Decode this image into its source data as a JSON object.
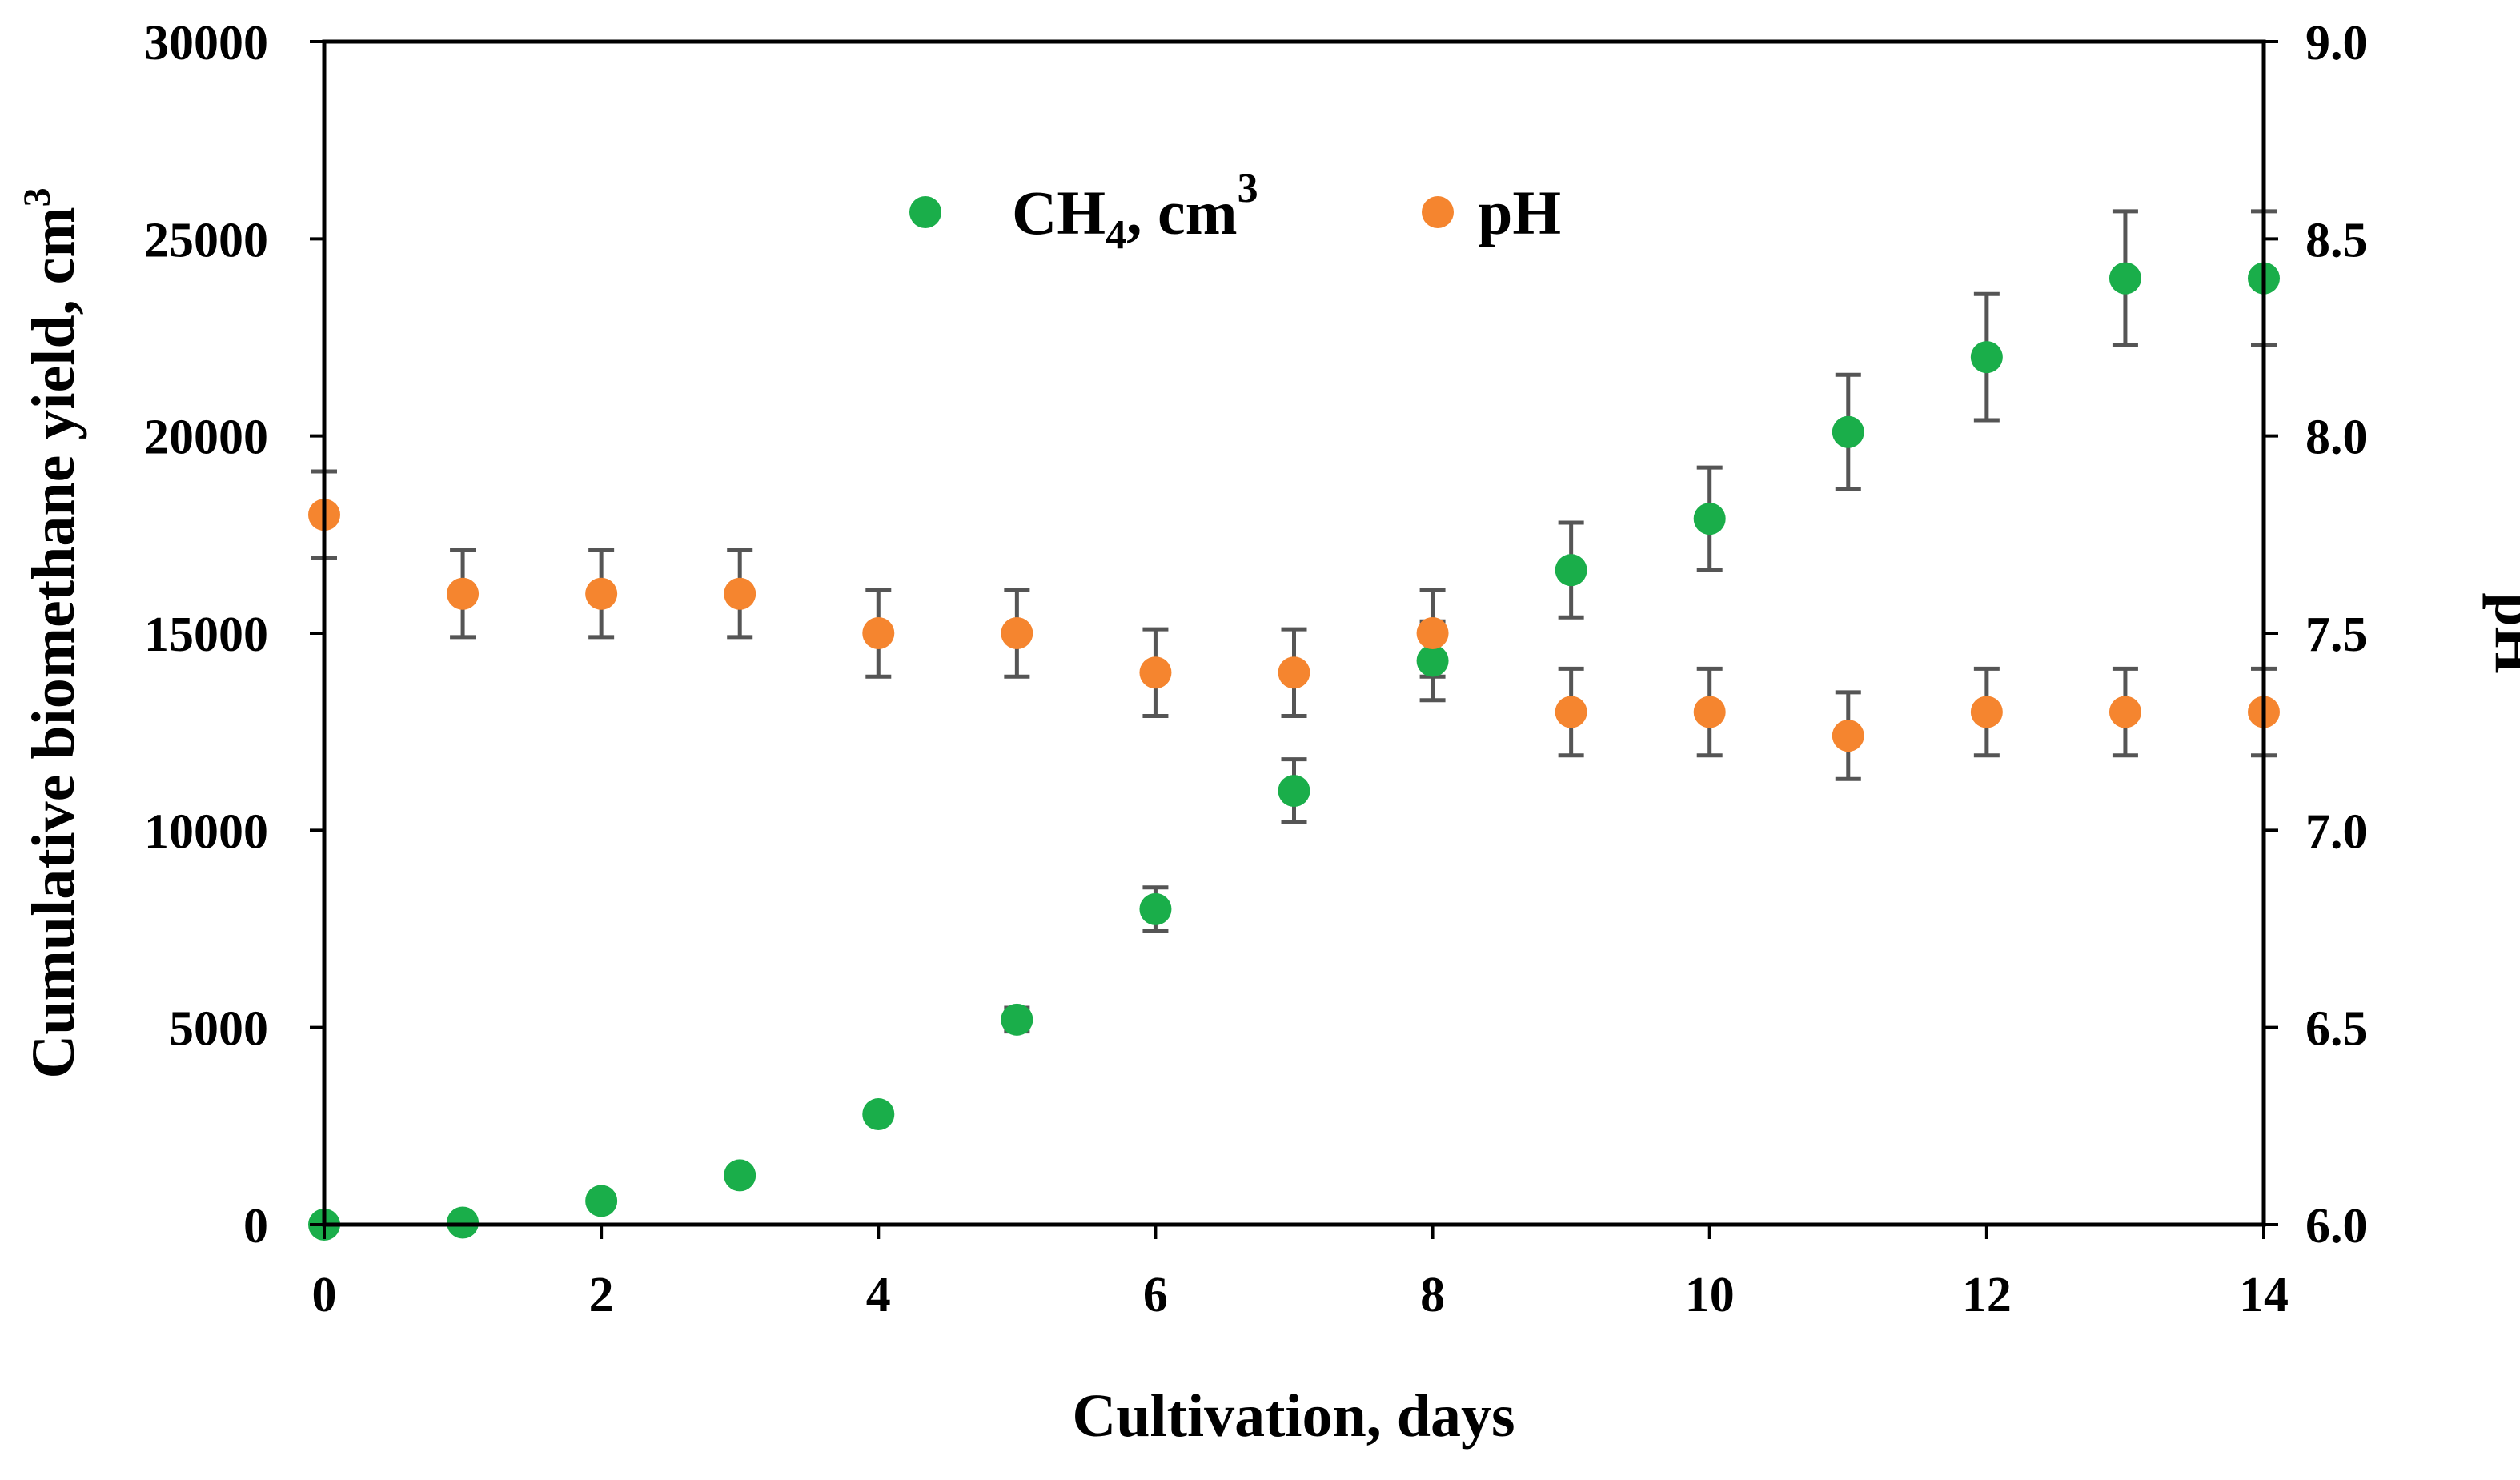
{
  "chart_data": {
    "type": "scatter",
    "title": "",
    "xlabel": "Cultivation, days",
    "ylabel": "Cumulative biomethane yield, cm",
    "ylabel_superscript": "3",
    "y2label": "pH",
    "xlim": [
      0,
      14
    ],
    "ylim": [
      0,
      30000
    ],
    "y2lim": [
      6.0,
      9.0
    ],
    "x_ticks": [
      "0",
      "2",
      "4",
      "6",
      "8",
      "10",
      "12",
      "14"
    ],
    "y_ticks": [
      "0",
      "5000",
      "10000",
      "15000",
      "20000",
      "25000",
      "30000"
    ],
    "y2_ticks": [
      "6.0",
      "6.5",
      "7.0",
      "7.5",
      "8.0",
      "8.5",
      "9.0"
    ],
    "grid": false,
    "legend_position": "top-center",
    "series": [
      {
        "name": "CH4, cm3",
        "legend_main": "CH",
        "legend_sub": "4",
        "legend_rest": ", cm",
        "legend_sup": "3",
        "color": "#1aae4a",
        "axis": "left",
        "x": [
          0,
          1,
          2,
          3,
          4,
          5,
          6,
          7,
          8,
          9,
          10,
          11,
          12,
          13,
          14
        ],
        "y": [
          0,
          50,
          600,
          1250,
          2800,
          5200,
          8000,
          11000,
          14300,
          16600,
          17900,
          20100,
          22000,
          24000,
          24000
        ],
        "error": [
          0,
          0,
          0,
          0,
          0,
          300,
          550,
          800,
          1000,
          1200,
          1300,
          1450,
          1600,
          1700,
          1700
        ]
      },
      {
        "name": "pH",
        "color": "#f5852f",
        "axis": "right",
        "x": [
          0,
          1,
          2,
          3,
          4,
          5,
          6,
          7,
          8,
          9,
          10,
          11,
          12,
          13,
          14
        ],
        "y": [
          7.8,
          7.6,
          7.6,
          7.6,
          7.5,
          7.5,
          7.4,
          7.4,
          7.5,
          7.3,
          7.3,
          7.24,
          7.3,
          7.3,
          7.3
        ],
        "error": [
          0.11,
          0.11,
          0.11,
          0.11,
          0.11,
          0.11,
          0.11,
          0.11,
          0.11,
          0.11,
          0.11,
          0.11,
          0.11,
          0.11,
          0.11
        ]
      }
    ],
    "errorbar_color": "#555555"
  }
}
